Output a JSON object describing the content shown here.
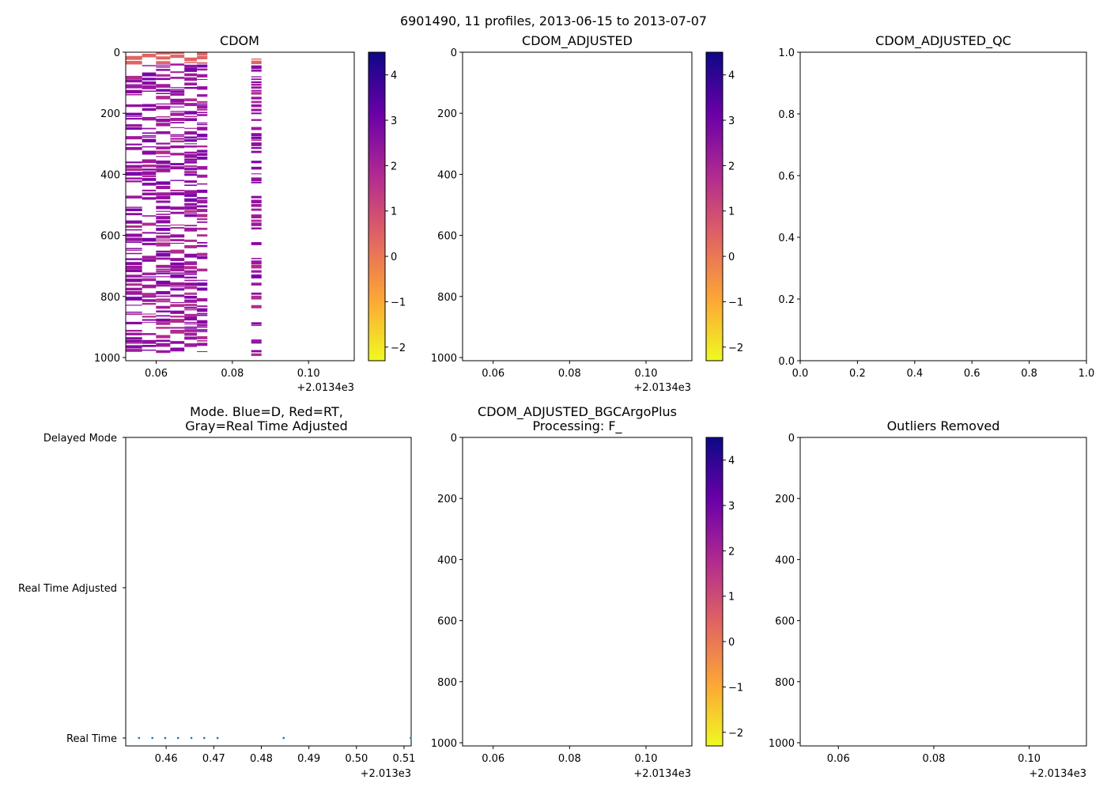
{
  "figure": {
    "suptitle": "6901490, 11 profiles, 2013-06-15 to 2013-07-07"
  },
  "colorbar": {
    "ticks": [
      "4",
      "3",
      "2",
      "1",
      "0",
      "−1",
      "−2"
    ],
    "range": [
      -2.3,
      4.5
    ],
    "stops": [
      "#0d0887",
      "#6a00a8",
      "#b12a90",
      "#e16462",
      "#fca636",
      "#f0f921"
    ]
  },
  "chart_data": [
    {
      "id": "cdom",
      "type": "heatmap",
      "title": "CDOM",
      "x_ticks": [
        "0.06",
        "0.08",
        "0.10"
      ],
      "x_offset": "+2.0134e3",
      "y_ticks": [
        "0",
        "200",
        "400",
        "600",
        "800",
        "1000"
      ],
      "ylim": [
        1000,
        0
      ],
      "xlim": [
        0.052,
        0.112
      ],
      "profiles_x": [
        0.0545,
        0.0581,
        0.0618,
        0.0656,
        0.0692,
        0.0722,
        0.0862
      ],
      "max_depth": [
        985,
        990,
        985,
        982,
        978,
        982,
        995
      ],
      "colorbar": true
    },
    {
      "id": "cdom-adjusted",
      "type": "heatmap",
      "title": "CDOM_ADJUSTED",
      "x_ticks": [
        "0.06",
        "0.08",
        "0.10"
      ],
      "x_offset": "+2.0134e3",
      "y_ticks": [
        "0",
        "200",
        "400",
        "600",
        "800",
        "1000"
      ],
      "colorbar": true
    },
    {
      "id": "cdom-adjusted-qc",
      "type": "scatter",
      "title": "CDOM_ADJUSTED_QC",
      "x_ticks": [
        "0.0",
        "0.2",
        "0.4",
        "0.6",
        "0.8",
        "1.0"
      ],
      "y_ticks": [
        "1.0",
        "0.8",
        "0.6",
        "0.4",
        "0.2",
        "0.0"
      ],
      "xlim": [
        0,
        1
      ],
      "ylim": [
        0,
        1
      ]
    },
    {
      "id": "mode",
      "type": "scatter",
      "title_line1": "Mode. Blue=D, Red=RT,",
      "title_line2": "Gray=Real Time Adjusted",
      "y_categories": [
        "Delayed Mode",
        "Real Time Adjusted",
        "Real Time"
      ],
      "x_ticks": [
        "0.46",
        "0.47",
        "0.48",
        "0.49",
        "0.50",
        "0.51"
      ],
      "x_offset": "+2.013e3",
      "xlim": [
        0.4515,
        0.5115
      ],
      "points_x": [
        0.4543,
        0.4571,
        0.4598,
        0.4625,
        0.4653,
        0.468,
        0.4708,
        0.4847,
        0.5114
      ],
      "points_mode": "Real Time",
      "point_color": "#1f77b4"
    },
    {
      "id": "cdom-bgcargoplus",
      "type": "heatmap",
      "title_line1": "CDOM_ADJUSTED_BGCArgoPlus",
      "title_line2": "Processing: F_",
      "x_ticks": [
        "0.06",
        "0.08",
        "0.10"
      ],
      "x_offset": "+2.0134e3",
      "y_ticks": [
        "0",
        "200",
        "400",
        "600",
        "800",
        "1000"
      ],
      "colorbar": true
    },
    {
      "id": "outliers-removed",
      "type": "heatmap",
      "title": "Outliers Removed",
      "x_ticks": [
        "0.06",
        "0.08",
        "0.10"
      ],
      "x_offset": "+2.0134e3",
      "y_ticks": [
        "0",
        "200",
        "400",
        "600",
        "800",
        "1000"
      ]
    }
  ]
}
